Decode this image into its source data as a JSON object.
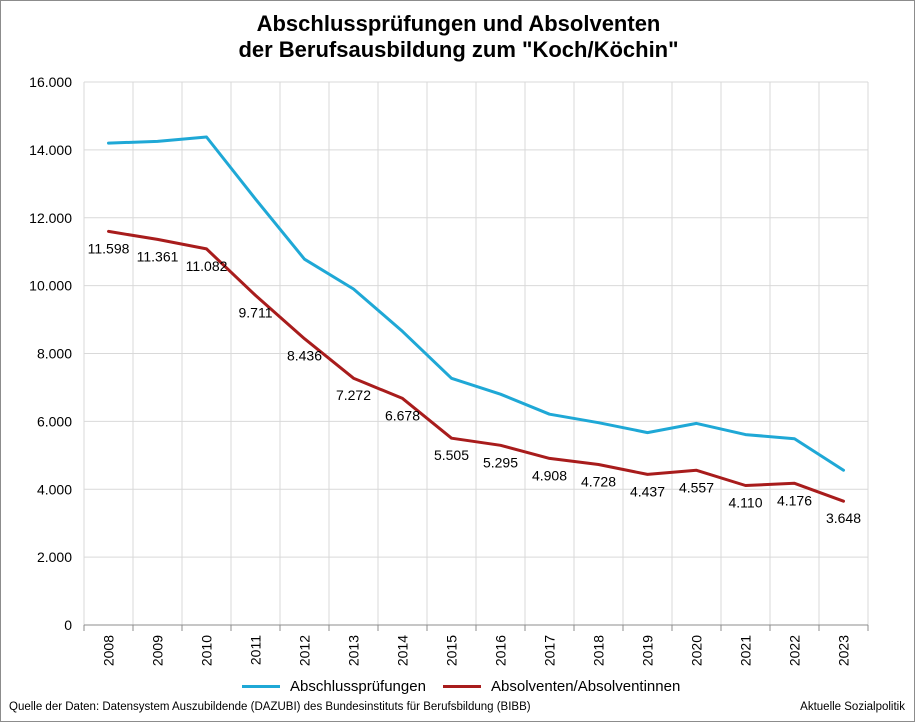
{
  "chart_data": {
    "type": "line",
    "title_line1": "Abschlussprüfungen und Absolventen",
    "title_line2": "der Berufsausbildung zum \"Koch/Köchin\"",
    "categories": [
      "2008",
      "2009",
      "2010",
      "2011",
      "2012",
      "2013",
      "2014",
      "2015",
      "2016",
      "2017",
      "2018",
      "2019",
      "2020",
      "2021",
      "2022",
      "2023"
    ],
    "ylim": [
      0,
      16000
    ],
    "yticks": [
      0,
      2000,
      4000,
      6000,
      8000,
      10000,
      12000,
      14000,
      16000
    ],
    "ytick_labels": [
      "0",
      "2.000",
      "4.000",
      "6.000",
      "8.000",
      "10.000",
      "12.000",
      "14.000",
      "16.000"
    ],
    "grid": true,
    "legend_position": "bottom",
    "series": [
      {
        "name": "Abschlussprüfungen",
        "color": "#1fa8d6",
        "values": [
          14200,
          14250,
          14380,
          12550,
          10780,
          9900,
          8650,
          7270,
          6800,
          6210,
          5960,
          5670,
          5940,
          5610,
          5490,
          4560
        ]
      },
      {
        "name": "Absolventen/Absolventinnen",
        "color": "#a81c1c",
        "values": [
          11598,
          11361,
          11082,
          9711,
          8436,
          7272,
          6678,
          5505,
          5295,
          4908,
          4728,
          4437,
          4557,
          4110,
          4176,
          3648
        ],
        "data_labels": [
          "11.598",
          "11.361",
          "11.082",
          "9.711",
          "8.436",
          "7.272",
          "6.678",
          "5.505",
          "5.295",
          "4.908",
          "4.728",
          "4.437",
          "4.557",
          "4.110",
          "4.176",
          "3.648"
        ]
      }
    ]
  },
  "footer": {
    "source": "Quelle der Daten: Datensystem Auszubildende (DAZUBI) des Bundesinstituts für Berufsbildung (BIBB)",
    "publisher": "Aktuelle Sozialpolitik"
  }
}
